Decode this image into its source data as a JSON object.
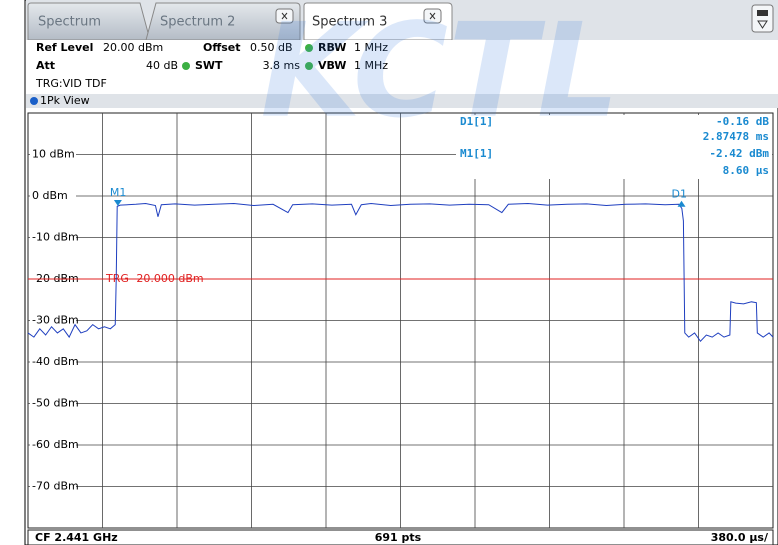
{
  "tabs": [
    "Spectrum",
    "Spectrum 2",
    "Spectrum 3"
  ],
  "watermark": "KCTL",
  "settings": [
    {
      "label": "Ref Level",
      "value": "20.00 dBm"
    },
    {
      "label": "Offset",
      "value": "0.50 dB"
    },
    {
      "label": "RBW",
      "value": "1 MHz"
    },
    {
      "label": "Att",
      "value": "40 dB"
    },
    {
      "label": "SWT",
      "value": "3.8 ms"
    },
    {
      "label": "VBW",
      "value": "1 MHz"
    }
  ],
  "trigger": "TRG:VID TDF",
  "window": "1Pk View",
  "footer": {
    "center": "CF 2.441 GHz",
    "points": "691 pts",
    "division": "380.0 µs/"
  },
  "chart_data": {
    "type": "line",
    "color": "#1f3fbf",
    "xlim": [
      -450,
      3350
    ],
    "ylim": [
      -80,
      20
    ],
    "yticks": [
      {
        "value": 10,
        "label": "10 dBm"
      },
      {
        "value": 0,
        "label": "0 dBm"
      },
      {
        "value": -10,
        "label": "-10 dBm"
      },
      {
        "value": -20,
        "label": "-20 dBm"
      },
      {
        "value": -30,
        "label": "-30 dBm"
      },
      {
        "value": -40,
        "label": "-40 dBm"
      },
      {
        "value": -50,
        "label": "-50 dBm"
      },
      {
        "value": -60,
        "label": "-60 dBm"
      },
      {
        "value": -70,
        "label": "-70 dBm"
      }
    ],
    "grid": true,
    "x": [
      -450,
      -420,
      -390,
      -360,
      -330,
      -300,
      -270,
      -240,
      -210,
      -180,
      -150,
      -120,
      -90,
      -60,
      -30,
      -5,
      0,
      5,
      20,
      100,
      150,
      200,
      213,
      230,
      300,
      400,
      500,
      600,
      700,
      800,
      876,
      900,
      1000,
      1100,
      1200,
      1222,
      1250,
      1300,
      1400,
      1500,
      1600,
      1700,
      1800,
      1900,
      1967,
      2000,
      2100,
      2200,
      2300,
      2400,
      2500,
      2600,
      2700,
      2800,
      2870,
      2885,
      2893,
      2900,
      2920,
      2950,
      2980,
      3010,
      3040,
      3070,
      3100,
      3130,
      3135,
      3160,
      3200,
      3240,
      3265,
      3270,
      3300,
      3330,
      3350
    ],
    "values": [
      -33,
      -34,
      -32,
      -33.5,
      -31.5,
      -33,
      -32,
      -34,
      -31,
      -33,
      -32.5,
      -31,
      -32,
      -31.5,
      -32,
      -31,
      -20,
      -2.5,
      -2.2,
      -2,
      -1.8,
      -2.3,
      -5,
      -2.1,
      -1.9,
      -2.2,
      -2,
      -1.8,
      -2.3,
      -2,
      -4,
      -2.1,
      -1.9,
      -2.2,
      -2,
      -4.5,
      -2.1,
      -1.8,
      -2.3,
      -2,
      -1.9,
      -2.2,
      -2,
      -2.1,
      -4,
      -2,
      -1.8,
      -2.2,
      -2,
      -1.9,
      -2.3,
      -2,
      -1.9,
      -2.1,
      -2,
      -3,
      -6,
      -33,
      -34,
      -33,
      -35,
      -33.5,
      -34,
      -33,
      -34,
      -33.5,
      -25.5,
      -25.8,
      -26,
      -25.5,
      -25.7,
      -33,
      -34,
      -33,
      -34
    ],
    "trigger_line": {
      "value": -20,
      "label": "TRG -20.000 dBm",
      "color": "#e02020"
    },
    "markers": [
      {
        "name": "M1",
        "readout": "M1[1]",
        "x": 8.6,
        "x_label": "8.60 µs",
        "y": -2.42,
        "y_label": "-2.42 dBm"
      },
      {
        "name": "D1",
        "readout": "D1[1]",
        "dx": 2874.78,
        "dx_label": "2.87478 ms",
        "dy": -0.16,
        "dy_label": "-0.16 dB"
      }
    ]
  }
}
